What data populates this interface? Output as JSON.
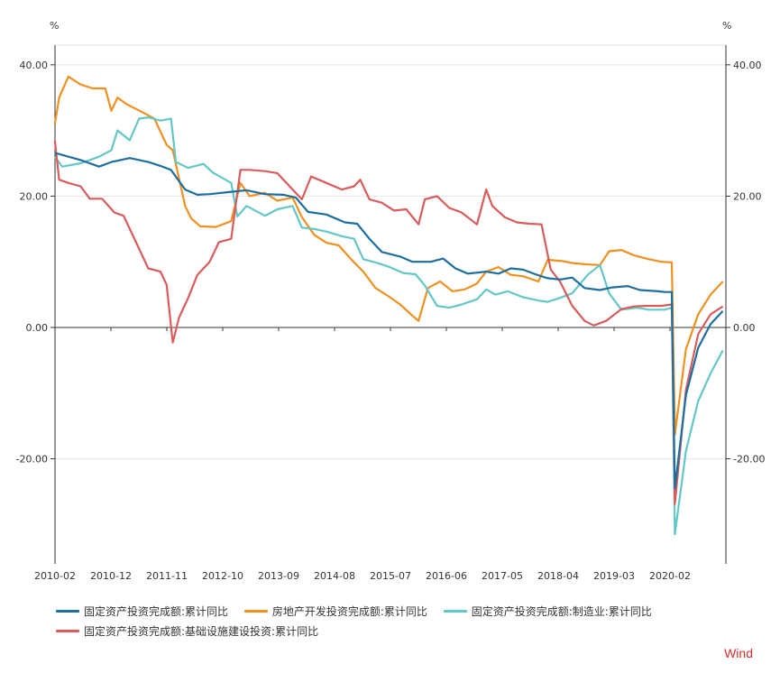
{
  "chart_data": {
    "type": "line",
    "left_unit": "%",
    "right_unit": "%",
    "ylim": [
      -36,
      43
    ],
    "y_ticks": [
      -20,
      0,
      20,
      40
    ],
    "y_tick_labels": [
      "-20.00",
      "0.00",
      "20.00",
      "40.00"
    ],
    "x_tick_labels": [
      "2010-02",
      "2010-12",
      "2011-11",
      "2012-10",
      "2013-09",
      "2014-08",
      "2015-07",
      "2016-06",
      "2017-05",
      "2018-04",
      "2019-03",
      "2020-02"
    ],
    "x_range": [
      2010.083,
      2021.0
    ],
    "grid": true,
    "legend_position": "bottom",
    "series": [
      {
        "name": "固定资产投资完成额:累计同比",
        "color": "#1c6f9e",
        "points": [
          [
            2010.08,
            26.6
          ],
          [
            2010.5,
            25.5
          ],
          [
            2010.8,
            24.5
          ],
          [
            2011.0,
            25.2
          ],
          [
            2011.3,
            25.8
          ],
          [
            2011.6,
            25.2
          ],
          [
            2011.8,
            24.6
          ],
          [
            2011.97,
            24.0
          ],
          [
            2012.2,
            21.0
          ],
          [
            2012.4,
            20.2
          ],
          [
            2012.6,
            20.3
          ],
          [
            2012.9,
            20.6
          ],
          [
            2013.2,
            20.9
          ],
          [
            2013.5,
            20.3
          ],
          [
            2013.8,
            20.2
          ],
          [
            2014.0,
            19.8
          ],
          [
            2014.2,
            17.6
          ],
          [
            2014.5,
            17.2
          ],
          [
            2014.8,
            16.0
          ],
          [
            2015.0,
            15.8
          ],
          [
            2015.2,
            13.5
          ],
          [
            2015.4,
            11.5
          ],
          [
            2015.7,
            10.8
          ],
          [
            2015.9,
            10.0
          ],
          [
            2016.2,
            10.0
          ],
          [
            2016.4,
            10.5
          ],
          [
            2016.6,
            9.0
          ],
          [
            2016.8,
            8.2
          ],
          [
            2017.1,
            8.5
          ],
          [
            2017.3,
            8.2
          ],
          [
            2017.5,
            9.0
          ],
          [
            2017.7,
            8.8
          ],
          [
            2017.9,
            8.1
          ],
          [
            2018.1,
            7.5
          ],
          [
            2018.3,
            7.3
          ],
          [
            2018.5,
            7.6
          ],
          [
            2018.7,
            6.0
          ],
          [
            2018.95,
            5.7
          ],
          [
            2019.15,
            6.1
          ],
          [
            2019.4,
            6.3
          ],
          [
            2019.6,
            5.7
          ],
          [
            2019.9,
            5.5
          ],
          [
            2020.0,
            5.4
          ],
          [
            2020.12,
            5.4
          ],
          [
            2020.17,
            -24.5
          ],
          [
            2020.35,
            -10.3
          ],
          [
            2020.55,
            -3.1
          ],
          [
            2020.75,
            0.5
          ],
          [
            2020.95,
            2.5
          ]
        ]
      },
      {
        "name": "房地产开发投资完成额:累计同比",
        "color": "#f0901e",
        "points": [
          [
            2010.08,
            31.0
          ],
          [
            2010.15,
            35.0
          ],
          [
            2010.3,
            38.2
          ],
          [
            2010.5,
            37.0
          ],
          [
            2010.7,
            36.4
          ],
          [
            2010.9,
            36.4
          ],
          [
            2011.0,
            33.0
          ],
          [
            2011.1,
            35.0
          ],
          [
            2011.25,
            34.0
          ],
          [
            2011.5,
            32.8
          ],
          [
            2011.7,
            31.8
          ],
          [
            2011.9,
            27.8
          ],
          [
            2012.0,
            27.0
          ],
          [
            2012.2,
            18.5
          ],
          [
            2012.3,
            16.6
          ],
          [
            2012.45,
            15.4
          ],
          [
            2012.7,
            15.3
          ],
          [
            2012.95,
            16.2
          ],
          [
            2013.1,
            22.0
          ],
          [
            2013.25,
            20.0
          ],
          [
            2013.5,
            20.5
          ],
          [
            2013.7,
            19.3
          ],
          [
            2013.95,
            19.8
          ],
          [
            2014.1,
            16.8
          ],
          [
            2014.3,
            14.1
          ],
          [
            2014.5,
            12.9
          ],
          [
            2014.7,
            12.5
          ],
          [
            2014.9,
            10.4
          ],
          [
            2015.1,
            8.5
          ],
          [
            2015.3,
            6.0
          ],
          [
            2015.5,
            4.8
          ],
          [
            2015.7,
            3.5
          ],
          [
            2015.9,
            1.8
          ],
          [
            2016.0,
            1.0
          ],
          [
            2016.15,
            6.0
          ],
          [
            2016.35,
            7.0
          ],
          [
            2016.55,
            5.5
          ],
          [
            2016.75,
            5.8
          ],
          [
            2016.95,
            6.7
          ],
          [
            2017.1,
            8.5
          ],
          [
            2017.3,
            9.2
          ],
          [
            2017.5,
            8.0
          ],
          [
            2017.7,
            7.8
          ],
          [
            2017.95,
            7.0
          ],
          [
            2018.1,
            10.3
          ],
          [
            2018.35,
            10.1
          ],
          [
            2018.5,
            9.8
          ],
          [
            2018.75,
            9.6
          ],
          [
            2018.95,
            9.5
          ],
          [
            2019.1,
            11.6
          ],
          [
            2019.3,
            11.8
          ],
          [
            2019.5,
            11.0
          ],
          [
            2019.7,
            10.5
          ],
          [
            2019.95,
            10.0
          ],
          [
            2020.12,
            9.9
          ],
          [
            2020.17,
            -16.3
          ],
          [
            2020.35,
            -3.3
          ],
          [
            2020.55,
            2.0
          ],
          [
            2020.75,
            5.0
          ],
          [
            2020.95,
            7.0
          ]
        ]
      },
      {
        "name": "固定资产投资完成额:制造业:累计同比",
        "color": "#62c7c6",
        "points": [
          [
            2010.08,
            26.0
          ],
          [
            2010.2,
            24.5
          ],
          [
            2010.5,
            25.0
          ],
          [
            2010.8,
            26.0
          ],
          [
            2011.0,
            27.0
          ],
          [
            2011.1,
            30.0
          ],
          [
            2011.3,
            28.5
          ],
          [
            2011.45,
            31.8
          ],
          [
            2011.6,
            32.0
          ],
          [
            2011.8,
            31.5
          ],
          [
            2011.97,
            31.8
          ],
          [
            2012.05,
            25.2
          ],
          [
            2012.25,
            24.3
          ],
          [
            2012.5,
            24.9
          ],
          [
            2012.65,
            23.6
          ],
          [
            2012.95,
            22.0
          ],
          [
            2013.05,
            16.9
          ],
          [
            2013.2,
            18.5
          ],
          [
            2013.5,
            17.0
          ],
          [
            2013.7,
            18.0
          ],
          [
            2013.95,
            18.5
          ],
          [
            2014.1,
            15.2
          ],
          [
            2014.3,
            15.0
          ],
          [
            2014.5,
            14.6
          ],
          [
            2014.75,
            13.9
          ],
          [
            2014.95,
            13.5
          ],
          [
            2015.1,
            10.4
          ],
          [
            2015.3,
            9.9
          ],
          [
            2015.5,
            9.3
          ],
          [
            2015.75,
            8.3
          ],
          [
            2015.95,
            8.1
          ],
          [
            2016.1,
            6.4
          ],
          [
            2016.3,
            3.3
          ],
          [
            2016.5,
            3.0
          ],
          [
            2016.7,
            3.5
          ],
          [
            2016.95,
            4.3
          ],
          [
            2017.1,
            5.8
          ],
          [
            2017.25,
            5.0
          ],
          [
            2017.45,
            5.5
          ],
          [
            2017.7,
            4.6
          ],
          [
            2017.95,
            4.1
          ],
          [
            2018.1,
            3.9
          ],
          [
            2018.3,
            4.5
          ],
          [
            2018.5,
            5.2
          ],
          [
            2018.75,
            8.0
          ],
          [
            2018.95,
            9.5
          ],
          [
            2019.1,
            5.2
          ],
          [
            2019.3,
            2.7
          ],
          [
            2019.55,
            3.0
          ],
          [
            2019.75,
            2.7
          ],
          [
            2020.0,
            2.7
          ],
          [
            2020.12,
            3.0
          ],
          [
            2020.17,
            -31.5
          ],
          [
            2020.35,
            -18.8
          ],
          [
            2020.55,
            -11.2
          ],
          [
            2020.75,
            -7.0
          ],
          [
            2020.95,
            -3.5
          ]
        ]
      },
      {
        "name": "固定资产投资完成额:基础设施建设投资:累计同比",
        "color": "#d95b5b",
        "points": [
          [
            2010.08,
            28.5
          ],
          [
            2010.15,
            22.5
          ],
          [
            2010.3,
            22.0
          ],
          [
            2010.5,
            21.5
          ],
          [
            2010.65,
            19.6
          ],
          [
            2010.85,
            19.6
          ],
          [
            2011.05,
            17.5
          ],
          [
            2011.2,
            17.0
          ],
          [
            2011.4,
            13.0
          ],
          [
            2011.6,
            9.0
          ],
          [
            2011.8,
            8.5
          ],
          [
            2011.9,
            6.5
          ],
          [
            2012.0,
            -2.3
          ],
          [
            2012.1,
            1.5
          ],
          [
            2012.25,
            4.5
          ],
          [
            2012.4,
            8.0
          ],
          [
            2012.6,
            10.0
          ],
          [
            2012.75,
            13.0
          ],
          [
            2012.95,
            13.5
          ],
          [
            2013.1,
            24.0
          ],
          [
            2013.25,
            24.0
          ],
          [
            2013.5,
            23.8
          ],
          [
            2013.7,
            23.5
          ],
          [
            2013.95,
            21.0
          ],
          [
            2014.1,
            19.5
          ],
          [
            2014.25,
            23.0
          ],
          [
            2014.5,
            22.0
          ],
          [
            2014.75,
            21.0
          ],
          [
            2014.95,
            21.5
          ],
          [
            2015.05,
            22.5
          ],
          [
            2015.2,
            19.5
          ],
          [
            2015.4,
            19.0
          ],
          [
            2015.6,
            17.8
          ],
          [
            2015.8,
            18.0
          ],
          [
            2016.0,
            15.7
          ],
          [
            2016.1,
            19.5
          ],
          [
            2016.3,
            20.0
          ],
          [
            2016.5,
            18.2
          ],
          [
            2016.7,
            17.5
          ],
          [
            2016.95,
            15.7
          ],
          [
            2017.1,
            21.0
          ],
          [
            2017.2,
            18.5
          ],
          [
            2017.4,
            16.8
          ],
          [
            2017.6,
            16.0
          ],
          [
            2017.8,
            15.8
          ],
          [
            2018.0,
            15.7
          ],
          [
            2018.15,
            8.8
          ],
          [
            2018.3,
            7.0
          ],
          [
            2018.5,
            3.3
          ],
          [
            2018.7,
            1.0
          ],
          [
            2018.85,
            0.3
          ],
          [
            2019.05,
            1.0
          ],
          [
            2019.3,
            2.8
          ],
          [
            2019.5,
            3.2
          ],
          [
            2019.7,
            3.3
          ],
          [
            2019.95,
            3.3
          ],
          [
            2020.12,
            3.5
          ],
          [
            2020.17,
            -26.9
          ],
          [
            2020.35,
            -9.5
          ],
          [
            2020.55,
            -1.0
          ],
          [
            2020.75,
            2.0
          ],
          [
            2020.95,
            3.2
          ]
        ]
      }
    ]
  },
  "brand": "Wind"
}
